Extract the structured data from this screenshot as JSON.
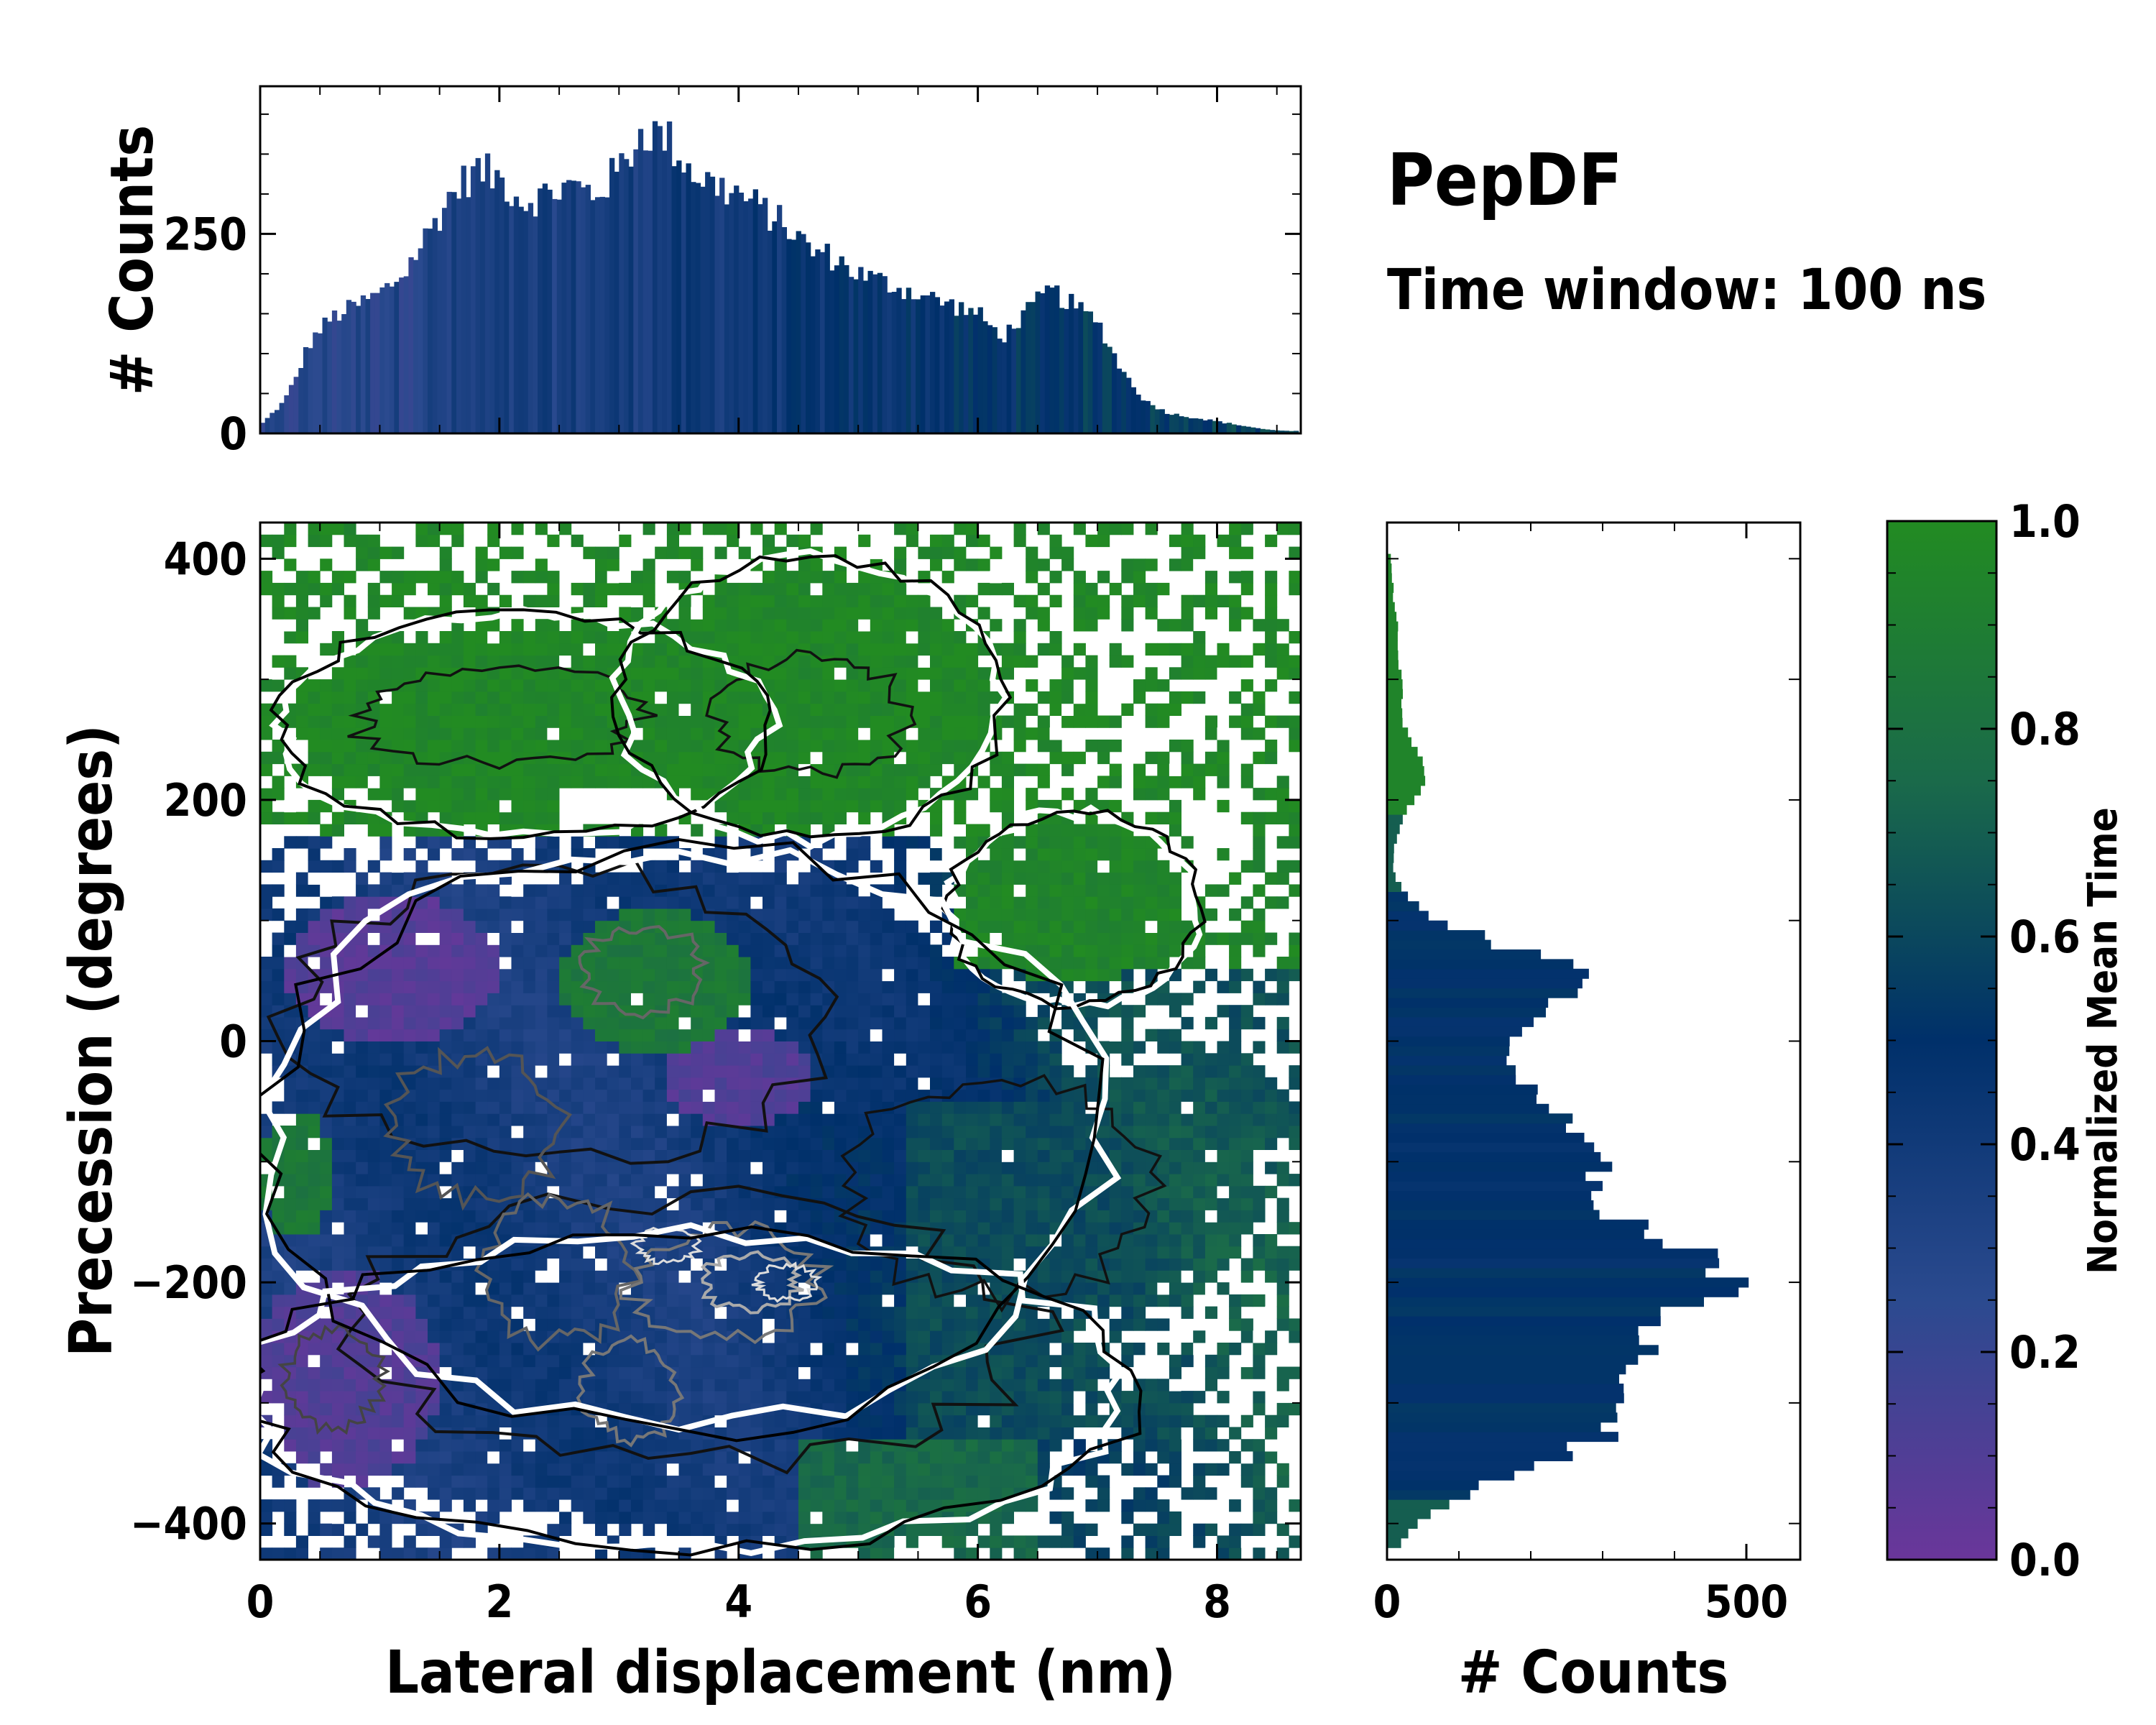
{
  "chart_data": [
    {
      "id": "top-histogram",
      "type": "bar",
      "ylabel": "# Counts",
      "xlim": [
        0,
        8.7
      ],
      "ylim": [
        0,
        435
      ],
      "yticks": [
        0,
        250
      ],
      "bin_width": 0.04,
      "anchors_x": [
        0.0,
        0.1,
        0.2,
        0.3,
        0.4,
        0.5,
        0.6,
        0.8,
        1.0,
        1.2,
        1.4,
        1.6,
        1.8,
        2.0,
        2.2,
        2.4,
        2.6,
        2.8,
        3.0,
        3.2,
        3.4,
        3.6,
        3.8,
        4.0,
        4.2,
        4.4,
        4.6,
        4.8,
        5.0,
        5.2,
        5.4,
        5.6,
        5.8,
        6.0,
        6.2,
        6.4,
        6.6,
        6.8,
        7.0,
        7.2,
        7.4,
        7.6,
        7.8,
        8.0,
        8.2,
        8.4,
        8.6
      ],
      "anchors_y": [
        10,
        25,
        40,
        70,
        110,
        130,
        145,
        160,
        175,
        200,
        250,
        300,
        330,
        320,
        290,
        300,
        310,
        300,
        330,
        380,
        370,
        330,
        310,
        300,
        280,
        260,
        230,
        220,
        200,
        190,
        180,
        170,
        160,
        150,
        120,
        150,
        180,
        160,
        140,
        80,
        40,
        25,
        20,
        15,
        10,
        5,
        3
      ]
    },
    {
      "id": "side-histogram",
      "type": "bar",
      "orientation": "horizontal",
      "xlabel": "# Counts",
      "xlim": [
        0,
        575
      ],
      "xticks": [
        0,
        500
      ],
      "ylim": [
        -430,
        430
      ],
      "bin_width": 8,
      "anchors_y": [
        -420,
        -400,
        -380,
        -360,
        -340,
        -320,
        -300,
        -280,
        -260,
        -240,
        -220,
        -200,
        -180,
        -160,
        -140,
        -120,
        -100,
        -80,
        -60,
        -40,
        -20,
        0,
        20,
        40,
        60,
        80,
        100,
        120,
        140,
        160,
        180,
        200,
        220,
        240,
        260,
        280,
        300,
        320,
        340,
        360,
        380,
        400
      ],
      "anchors_x": [
        15,
        40,
        90,
        170,
        260,
        330,
        340,
        330,
        340,
        380,
        430,
        480,
        500,
        360,
        320,
        310,
        280,
        260,
        240,
        210,
        180,
        160,
        200,
        270,
        260,
        160,
        70,
        30,
        8,
        10,
        20,
        35,
        60,
        40,
        25,
        20,
        20,
        15,
        15,
        10,
        8,
        5
      ]
    },
    {
      "id": "main-heatmap",
      "type": "heatmap",
      "xlabel": "Lateral displacement (nm)",
      "ylabel": "Precession (degrees)",
      "xlim": [
        0,
        8.7
      ],
      "ylim": [
        -430,
        430
      ],
      "xticks": [
        0,
        2,
        4,
        6,
        8
      ],
      "yticks": [
        -400,
        -200,
        0,
        200,
        400
      ],
      "colorbar": {
        "label": "Normalized Mean Time",
        "range": [
          0,
          1
        ],
        "ticks": [
          "0.0",
          "0.2",
          "0.4",
          "0.6",
          "0.8",
          "1.0"
        ],
        "colors": [
          "#6a369a",
          "#2b4a8f",
          "#00306a",
          "#1a6a4a",
          "#228b22"
        ]
      },
      "regions": [
        {
          "name": "late-upper-left",
          "cx": 2.2,
          "cy": 260,
          "rx": 1.9,
          "ry": 80,
          "t": 0.97
        },
        {
          "name": "late-upper-mid",
          "cx": 4.6,
          "cy": 280,
          "rx": 1.5,
          "ry": 105,
          "t": 0.97
        },
        {
          "name": "late-right",
          "cx": 6.8,
          "cy": 110,
          "rx": 0.9,
          "ry": 60,
          "t": 0.95
        },
        {
          "name": "early-left",
          "cx": 1.1,
          "cy": 60,
          "rx": 0.9,
          "ry": 60,
          "t": 0.08
        },
        {
          "name": "early-lower-left",
          "cx": 0.7,
          "cy": -280,
          "rx": 0.8,
          "ry": 90,
          "t": 0.1
        },
        {
          "name": "early-mid",
          "cx": 4.0,
          "cy": -30,
          "rx": 0.6,
          "ry": 40,
          "t": 0.1
        },
        {
          "name": "mid-green-left",
          "cx": 0.3,
          "cy": -110,
          "rx": 0.35,
          "ry": 50,
          "t": 0.85
        },
        {
          "name": "mid-green-band",
          "cx": 3.3,
          "cy": 50,
          "rx": 0.8,
          "ry": 60,
          "t": 0.85
        }
      ]
    }
  ],
  "labels": {
    "title": "PepDF",
    "subtitle": "Time window: 100 ns"
  }
}
